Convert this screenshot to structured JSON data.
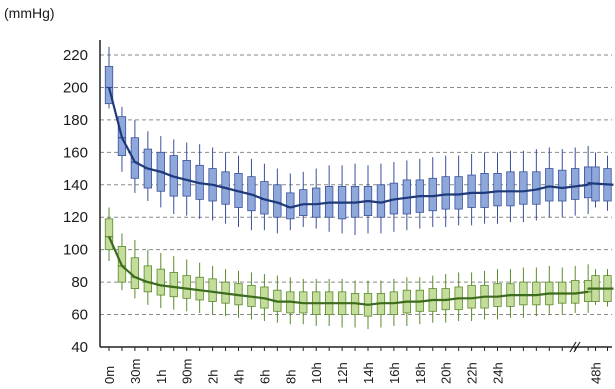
{
  "chart_data": {
    "type": "box",
    "unit_label": "(mmHg)",
    "ylim": [
      40,
      225
    ],
    "yticks": [
      40,
      60,
      80,
      100,
      120,
      140,
      160,
      180,
      200,
      220
    ],
    "grid": "horizontal dashed",
    "x_tick_labels": [
      "0m",
      "30m",
      "1h",
      "90m",
      "2h",
      "4h",
      "6h",
      "8h",
      "10h",
      "12h",
      "14h",
      "16h",
      "18h",
      "20h",
      "22h",
      "24h",
      "48h"
    ],
    "colors": {
      "systolic_box": "#8fa8dc",
      "systolic_border": "#3a5199",
      "systolic_line": "#1f3a7a",
      "diastolic_box": "#c4dd9b",
      "diastolic_border": "#5a8a2c",
      "diastolic_line": "#3d6b1d",
      "grid": "#8a8a8a",
      "axis": "#222222"
    },
    "series": [
      {
        "name": "",
        "role": "systolic",
        "boxes": [
          {
            "min": 187,
            "q1": 190,
            "median": 200,
            "q3": 213,
            "max": 225
          },
          {
            "min": 148,
            "q1": 158,
            "median": 169,
            "q3": 182,
            "max": 188
          },
          {
            "min": 135,
            "q1": 144,
            "median": 154,
            "q3": 169,
            "max": 180
          },
          {
            "min": 130,
            "q1": 138,
            "median": 150,
            "q3": 162,
            "max": 173
          },
          {
            "min": 126,
            "q1": 136,
            "median": 148,
            "q3": 160,
            "max": 170
          },
          {
            "min": 122,
            "q1": 133,
            "median": 145,
            "q3": 158,
            "max": 168
          },
          {
            "min": 121,
            "q1": 133,
            "median": 143,
            "q3": 155,
            "max": 166
          },
          {
            "min": 119,
            "q1": 131,
            "median": 141,
            "q3": 152,
            "max": 165
          },
          {
            "min": 118,
            "q1": 130,
            "median": 140,
            "q3": 150,
            "max": 163
          },
          {
            "min": 116,
            "q1": 128,
            "median": 138,
            "q3": 148,
            "max": 160
          },
          {
            "min": 114,
            "q1": 126,
            "median": 136,
            "q3": 147,
            "max": 158
          },
          {
            "min": 112,
            "q1": 124,
            "median": 134,
            "q3": 145,
            "max": 156
          },
          {
            "min": 112,
            "q1": 122,
            "median": 131,
            "q3": 142,
            "max": 153
          },
          {
            "min": 110,
            "q1": 120,
            "median": 129,
            "q3": 140,
            "max": 150
          },
          {
            "min": 112,
            "q1": 119,
            "median": 126,
            "q3": 135,
            "max": 147
          },
          {
            "min": 114,
            "q1": 121,
            "median": 128,
            "q3": 137,
            "max": 148
          },
          {
            "min": 113,
            "q1": 120,
            "median": 128,
            "q3": 138,
            "max": 150
          },
          {
            "min": 111,
            "q1": 120,
            "median": 129,
            "q3": 139,
            "max": 152
          },
          {
            "min": 110,
            "q1": 119,
            "median": 129,
            "q3": 139,
            "max": 152
          },
          {
            "min": 109,
            "q1": 120,
            "median": 129,
            "q3": 139,
            "max": 153
          },
          {
            "min": 110,
            "q1": 121,
            "median": 130,
            "q3": 139,
            "max": 152
          },
          {
            "min": 110,
            "q1": 120,
            "median": 129,
            "q3": 140,
            "max": 153
          },
          {
            "min": 111,
            "q1": 122,
            "median": 131,
            "q3": 141,
            "max": 154
          },
          {
            "min": 112,
            "q1": 122,
            "median": 132,
            "q3": 143,
            "max": 155
          },
          {
            "min": 113,
            "q1": 123,
            "median": 133,
            "q3": 143,
            "max": 156
          },
          {
            "min": 114,
            "q1": 124,
            "median": 133,
            "q3": 144,
            "max": 157
          },
          {
            "min": 114,
            "q1": 125,
            "median": 134,
            "q3": 145,
            "max": 158
          },
          {
            "min": 115,
            "q1": 125,
            "median": 134,
            "q3": 145,
            "max": 158
          },
          {
            "min": 115,
            "q1": 126,
            "median": 135,
            "q3": 146,
            "max": 159
          },
          {
            "min": 116,
            "q1": 126,
            "median": 135,
            "q3": 147,
            "max": 160
          },
          {
            "min": 116,
            "q1": 127,
            "median": 136,
            "q3": 147,
            "max": 160
          },
          {
            "min": 117,
            "q1": 127,
            "median": 136,
            "q3": 148,
            "max": 161
          },
          {
            "min": 117,
            "q1": 128,
            "median": 136,
            "q3": 148,
            "max": 161
          },
          {
            "min": 118,
            "q1": 128,
            "median": 137,
            "q3": 148,
            "max": 162
          },
          {
            "min": 120,
            "q1": 130,
            "median": 139,
            "q3": 150,
            "max": 163
          },
          {
            "min": 120,
            "q1": 130,
            "median": 138,
            "q3": 149,
            "max": 162
          },
          {
            "min": 121,
            "q1": 131,
            "median": 139,
            "q3": 150,
            "max": 163
          },
          {
            "min": 122,
            "q1": 132,
            "median": 140,
            "q3": 151,
            "max": 164
          },
          {
            "min": 126,
            "q1": 130,
            "median": 141,
            "q3": 151,
            "max": 160
          },
          {
            "min": 124,
            "q1": 130,
            "median": 140,
            "q3": 150,
            "max": 158
          }
        ],
        "trend": [
          200,
          169,
          154,
          150,
          148,
          145,
          143,
          141,
          140,
          138,
          136,
          134,
          131,
          129,
          126,
          128,
          128,
          129,
          129,
          129,
          130,
          129,
          131,
          132,
          133,
          133,
          134,
          134,
          135,
          135,
          136,
          136,
          136,
          137,
          139,
          138,
          139,
          140
        ]
      },
      {
        "name": "",
        "role": "diastolic",
        "boxes": [
          {
            "min": 93,
            "q1": 100,
            "median": 108,
            "q3": 119,
            "max": 126
          },
          {
            "min": 75,
            "q1": 80,
            "median": 90,
            "q3": 102,
            "max": 110
          },
          {
            "min": 70,
            "q1": 76,
            "median": 83,
            "q3": 95,
            "max": 106
          },
          {
            "min": 66,
            "q1": 74,
            "median": 80,
            "q3": 90,
            "max": 100
          },
          {
            "min": 64,
            "q1": 72,
            "median": 78,
            "q3": 88,
            "max": 98
          },
          {
            "min": 63,
            "q1": 71,
            "median": 77,
            "q3": 86,
            "max": 96
          },
          {
            "min": 62,
            "q1": 70,
            "median": 76,
            "q3": 84,
            "max": 94
          },
          {
            "min": 61,
            "q1": 69,
            "median": 75,
            "q3": 83,
            "max": 92
          },
          {
            "min": 60,
            "q1": 68,
            "median": 74,
            "q3": 82,
            "max": 90
          },
          {
            "min": 59,
            "q1": 67,
            "median": 73,
            "q3": 80,
            "max": 88
          },
          {
            "min": 58,
            "q1": 66,
            "median": 72,
            "q3": 79,
            "max": 87
          },
          {
            "min": 57,
            "q1": 65,
            "median": 71,
            "q3": 78,
            "max": 86
          },
          {
            "min": 56,
            "q1": 64,
            "median": 70,
            "q3": 77,
            "max": 85
          },
          {
            "min": 55,
            "q1": 62,
            "median": 68,
            "q3": 75,
            "max": 84
          },
          {
            "min": 54,
            "q1": 61,
            "median": 68,
            "q3": 74,
            "max": 83
          },
          {
            "min": 54,
            "q1": 61,
            "median": 67,
            "q3": 74,
            "max": 82
          },
          {
            "min": 53,
            "q1": 60,
            "median": 67,
            "q3": 74,
            "max": 82
          },
          {
            "min": 53,
            "q1": 60,
            "median": 67,
            "q3": 74,
            "max": 82
          },
          {
            "min": 52,
            "q1": 60,
            "median": 67,
            "q3": 74,
            "max": 82
          },
          {
            "min": 52,
            "q1": 60,
            "median": 67,
            "q3": 73,
            "max": 81
          },
          {
            "min": 51,
            "q1": 59,
            "median": 66,
            "q3": 73,
            "max": 81
          },
          {
            "min": 52,
            "q1": 60,
            "median": 67,
            "q3": 73,
            "max": 81
          },
          {
            "min": 53,
            "q1": 60,
            "median": 67,
            "q3": 74,
            "max": 82
          },
          {
            "min": 53,
            "q1": 61,
            "median": 68,
            "q3": 75,
            "max": 83
          },
          {
            "min": 54,
            "q1": 62,
            "median": 68,
            "q3": 75,
            "max": 83
          },
          {
            "min": 55,
            "q1": 62,
            "median": 69,
            "q3": 76,
            "max": 84
          },
          {
            "min": 55,
            "q1": 63,
            "median": 69,
            "q3": 76,
            "max": 85
          },
          {
            "min": 56,
            "q1": 63,
            "median": 70,
            "q3": 77,
            "max": 86
          },
          {
            "min": 56,
            "q1": 64,
            "median": 70,
            "q3": 78,
            "max": 86
          },
          {
            "min": 57,
            "q1": 64,
            "median": 71,
            "q3": 78,
            "max": 87
          },
          {
            "min": 57,
            "q1": 65,
            "median": 71,
            "q3": 79,
            "max": 88
          },
          {
            "min": 58,
            "q1": 65,
            "median": 72,
            "q3": 79,
            "max": 88
          },
          {
            "min": 58,
            "q1": 66,
            "median": 72,
            "q3": 80,
            "max": 89
          },
          {
            "min": 59,
            "q1": 66,
            "median": 72,
            "q3": 80,
            "max": 89
          },
          {
            "min": 60,
            "q1": 66,
            "median": 73,
            "q3": 80,
            "max": 90
          },
          {
            "min": 60,
            "q1": 67,
            "median": 73,
            "q3": 80,
            "max": 89
          },
          {
            "min": 61,
            "q1": 67,
            "median": 73,
            "q3": 81,
            "max": 90
          },
          {
            "min": 61,
            "q1": 68,
            "median": 74,
            "q3": 81,
            "max": 91
          },
          {
            "min": 66,
            "q1": 68,
            "median": 76,
            "q3": 84,
            "max": 88
          },
          {
            "min": 65,
            "q1": 68,
            "median": 76,
            "q3": 84,
            "max": 88
          }
        ],
        "trend": [
          108,
          90,
          83,
          80,
          78,
          77,
          76,
          75,
          74,
          73,
          72,
          71,
          70,
          68,
          68,
          67,
          67,
          67,
          67,
          67,
          66,
          67,
          67,
          68,
          68,
          69,
          69,
          70,
          70,
          71,
          71,
          72,
          72,
          72,
          73,
          73,
          73,
          74
        ]
      }
    ]
  }
}
